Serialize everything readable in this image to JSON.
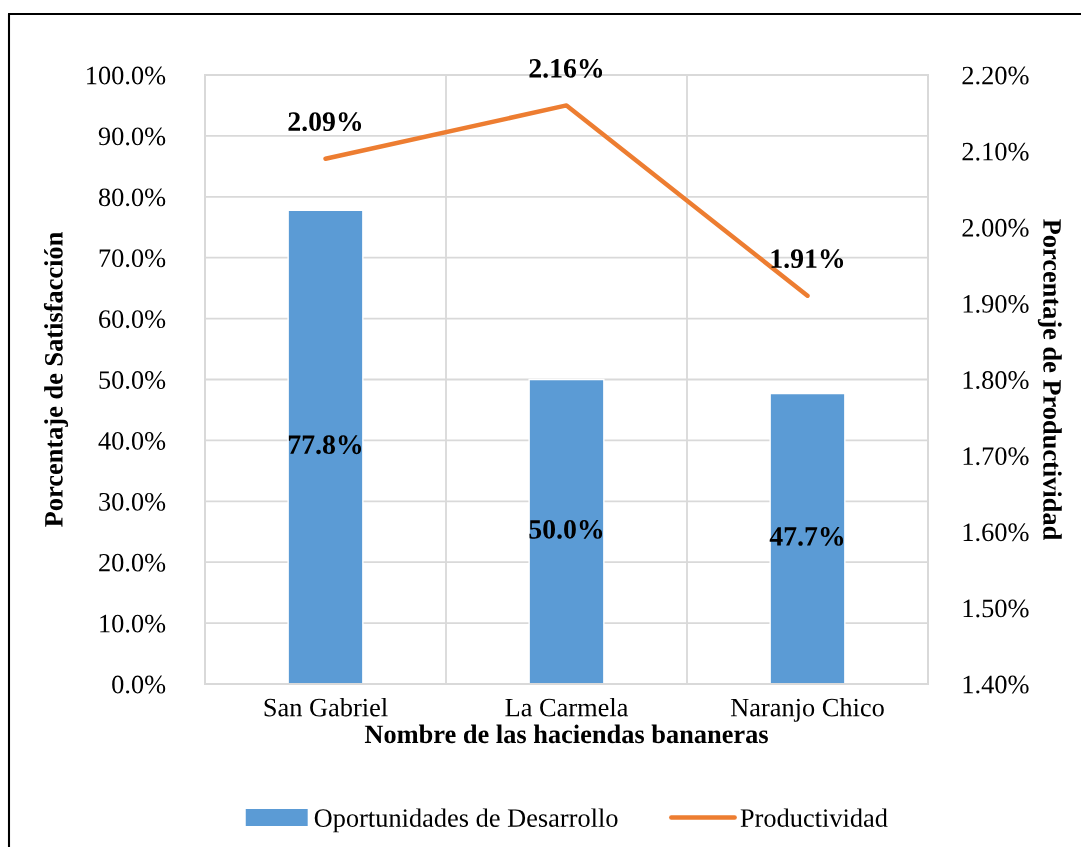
{
  "chart_data": {
    "type": "bar",
    "xlabel": "Nombre de las haciendas bananeras",
    "ylabel": "Porcentaje de Satisfacción",
    "y2label": "Porcentaje de Productividad",
    "categories": [
      "San Gabriel",
      "La Carmela",
      "Naranjo Chico"
    ],
    "series": [
      {
        "name": "Oportunidades de Desarrollo",
        "color": "#5b9bd5",
        "values": [
          77.8,
          50.0,
          47.7
        ],
        "value_labels": [
          "77.8%",
          "50.0%",
          "47.7%"
        ]
      },
      {
        "name": "Productividad",
        "type": "line",
        "axis": "y2",
        "color": "#ed7d31",
        "values": [
          2.09,
          2.16,
          1.91
        ],
        "value_labels": [
          "2.09%",
          "2.16%",
          "1.91%"
        ]
      }
    ],
    "ylim": [
      0,
      100
    ],
    "yticks": [
      {
        "value": 0,
        "label": "0.0%"
      },
      {
        "value": 10,
        "label": "10.0%"
      },
      {
        "value": 20,
        "label": "20.0%"
      },
      {
        "value": 30,
        "label": "30.0%"
      },
      {
        "value": 40,
        "label": "40.0%"
      },
      {
        "value": 50,
        "label": "50.0%"
      },
      {
        "value": 60,
        "label": "60.0%"
      },
      {
        "value": 70,
        "label": "70.0%"
      },
      {
        "value": 80,
        "label": "80.0%"
      },
      {
        "value": 90,
        "label": "90.0%"
      },
      {
        "value": 100,
        "label": "100.0%"
      }
    ],
    "y2lim": [
      1.4,
      2.2
    ],
    "y2ticks": [
      {
        "value": 1.4,
        "label": "1.40%"
      },
      {
        "value": 1.5,
        "label": "1.50%"
      },
      {
        "value": 1.6,
        "label": "1.60%"
      },
      {
        "value": 1.7,
        "label": "1.70%"
      },
      {
        "value": 1.8,
        "label": "1.80%"
      },
      {
        "value": 1.9,
        "label": "1.90%"
      },
      {
        "value": 2.0,
        "label": "2.00%"
      },
      {
        "value": 2.1,
        "label": "2.10%"
      },
      {
        "value": 2.2,
        "label": "2.20%"
      }
    ],
    "grid": true,
    "legend": "bottom"
  }
}
